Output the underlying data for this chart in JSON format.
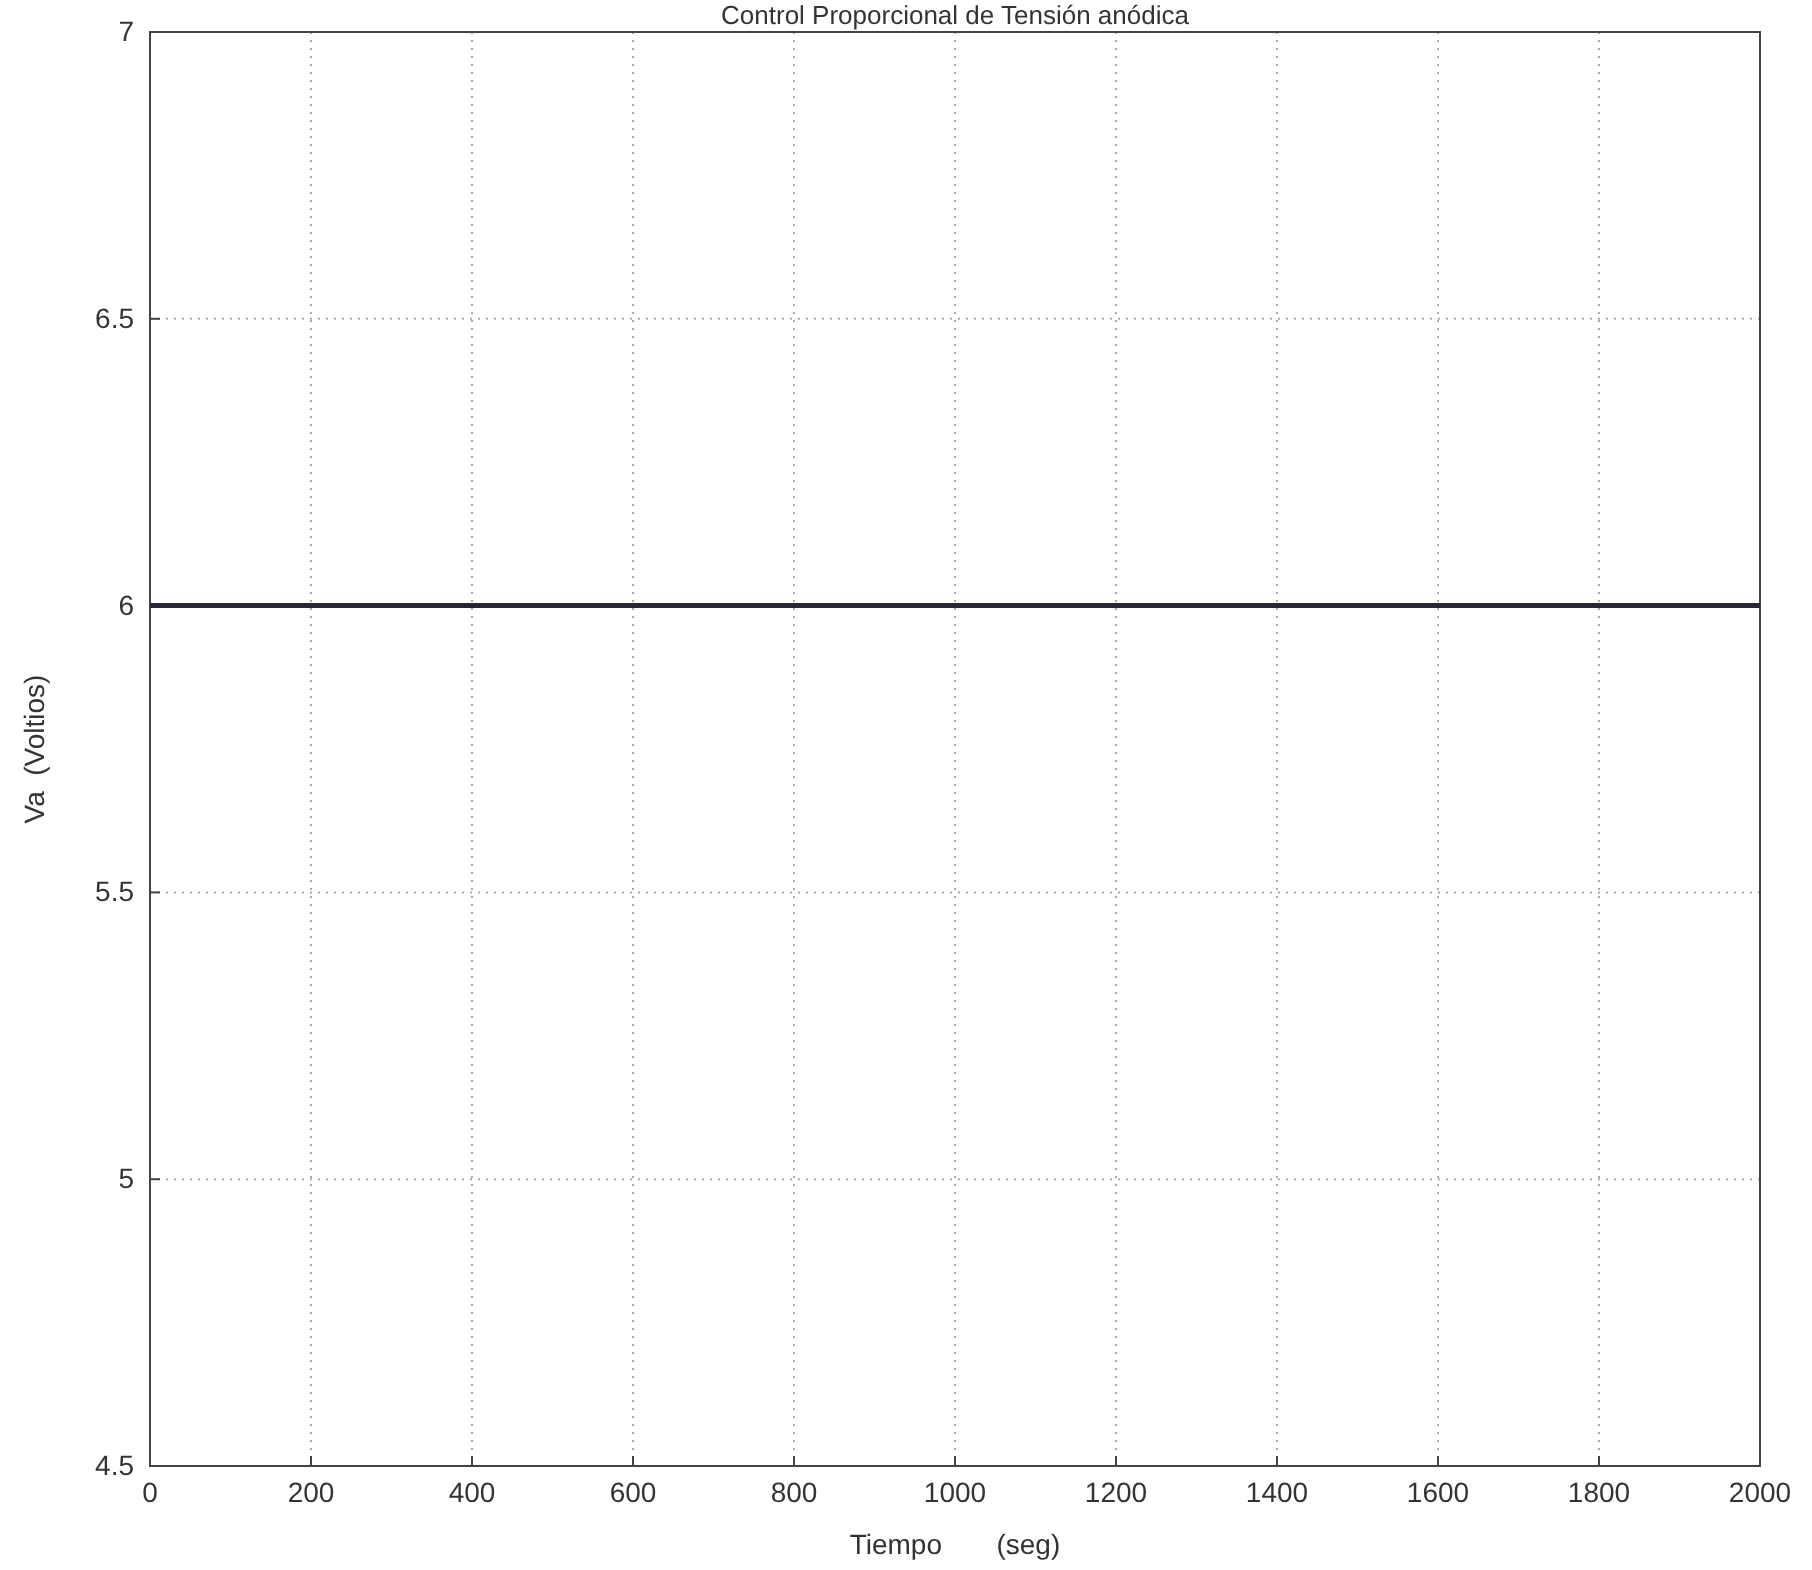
{
  "chart_data": {
    "type": "line",
    "title": "Control Proporcional de Tensión anódica",
    "xlabel": "Tiempo       (seg)",
    "ylabel": "Va  (Voltios)",
    "x": [
      0,
      2000
    ],
    "series": [
      {
        "color": "#2a2438",
        "values": [
          6,
          6
        ]
      }
    ],
    "xlim": [
      0,
      2000
    ],
    "xticks": [
      0,
      200,
      400,
      600,
      800,
      1000,
      1200,
      1400,
      1600,
      1800,
      2000
    ],
    "ylim": [
      4.5,
      7
    ],
    "yticks": [
      4.5,
      5,
      5.5,
      6,
      6.5,
      7
    ],
    "grid": true,
    "marker": "none",
    "line_style": "solid"
  }
}
